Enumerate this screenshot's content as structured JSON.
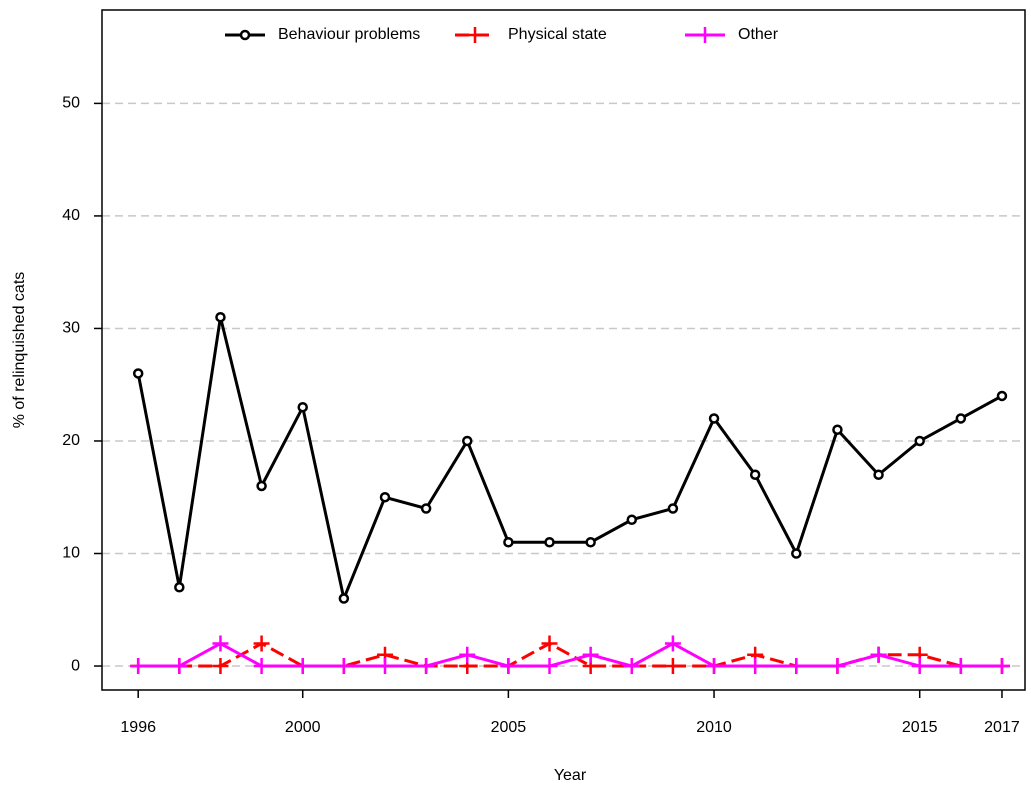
{
  "chart_data": {
    "type": "line",
    "x_label": "Year",
    "y_label": "% of relinquished cats",
    "x": [
      1996,
      1997,
      1998,
      1999,
      2000,
      2001,
      2002,
      2003,
      2004,
      2005,
      2006,
      2007,
      2008,
      2009,
      2010,
      2011,
      2012,
      2013,
      2014,
      2015,
      2016,
      2017
    ],
    "series": [
      {
        "name": "Behaviour problems",
        "color": "#000000",
        "marker": "circle",
        "dashed": false,
        "values": [
          26,
          7,
          31,
          16,
          23,
          6,
          15,
          14,
          20,
          11,
          11,
          11,
          13,
          14,
          22,
          17,
          10,
          21,
          17,
          20,
          22,
          24
        ]
      },
      {
        "name": "Physical state",
        "color": "#ff0000",
        "marker": "plus",
        "dashed": true,
        "values": [
          0,
          0,
          0,
          2,
          0,
          0,
          1,
          0,
          0,
          0,
          2,
          0,
          0,
          0,
          0,
          1,
          0,
          0,
          1,
          1,
          0,
          0
        ]
      },
      {
        "name": "Other",
        "color": "#ff00ff",
        "marker": "plus",
        "dashed": false,
        "values": [
          0,
          0,
          2,
          0,
          0,
          0,
          0,
          0,
          1,
          0,
          0,
          1,
          0,
          2,
          0,
          0,
          0,
          0,
          1,
          0,
          0,
          0
        ]
      }
    ],
    "xlim": [
      1995.12,
      2017.56
    ],
    "xticks": [
      1996,
      2000,
      2005,
      2010,
      2015,
      2017
    ],
    "ylim": [
      -2.13,
      58.3
    ],
    "yticks": [
      0,
      10,
      20,
      30,
      40,
      50
    ],
    "grid": true,
    "legend": "top"
  }
}
